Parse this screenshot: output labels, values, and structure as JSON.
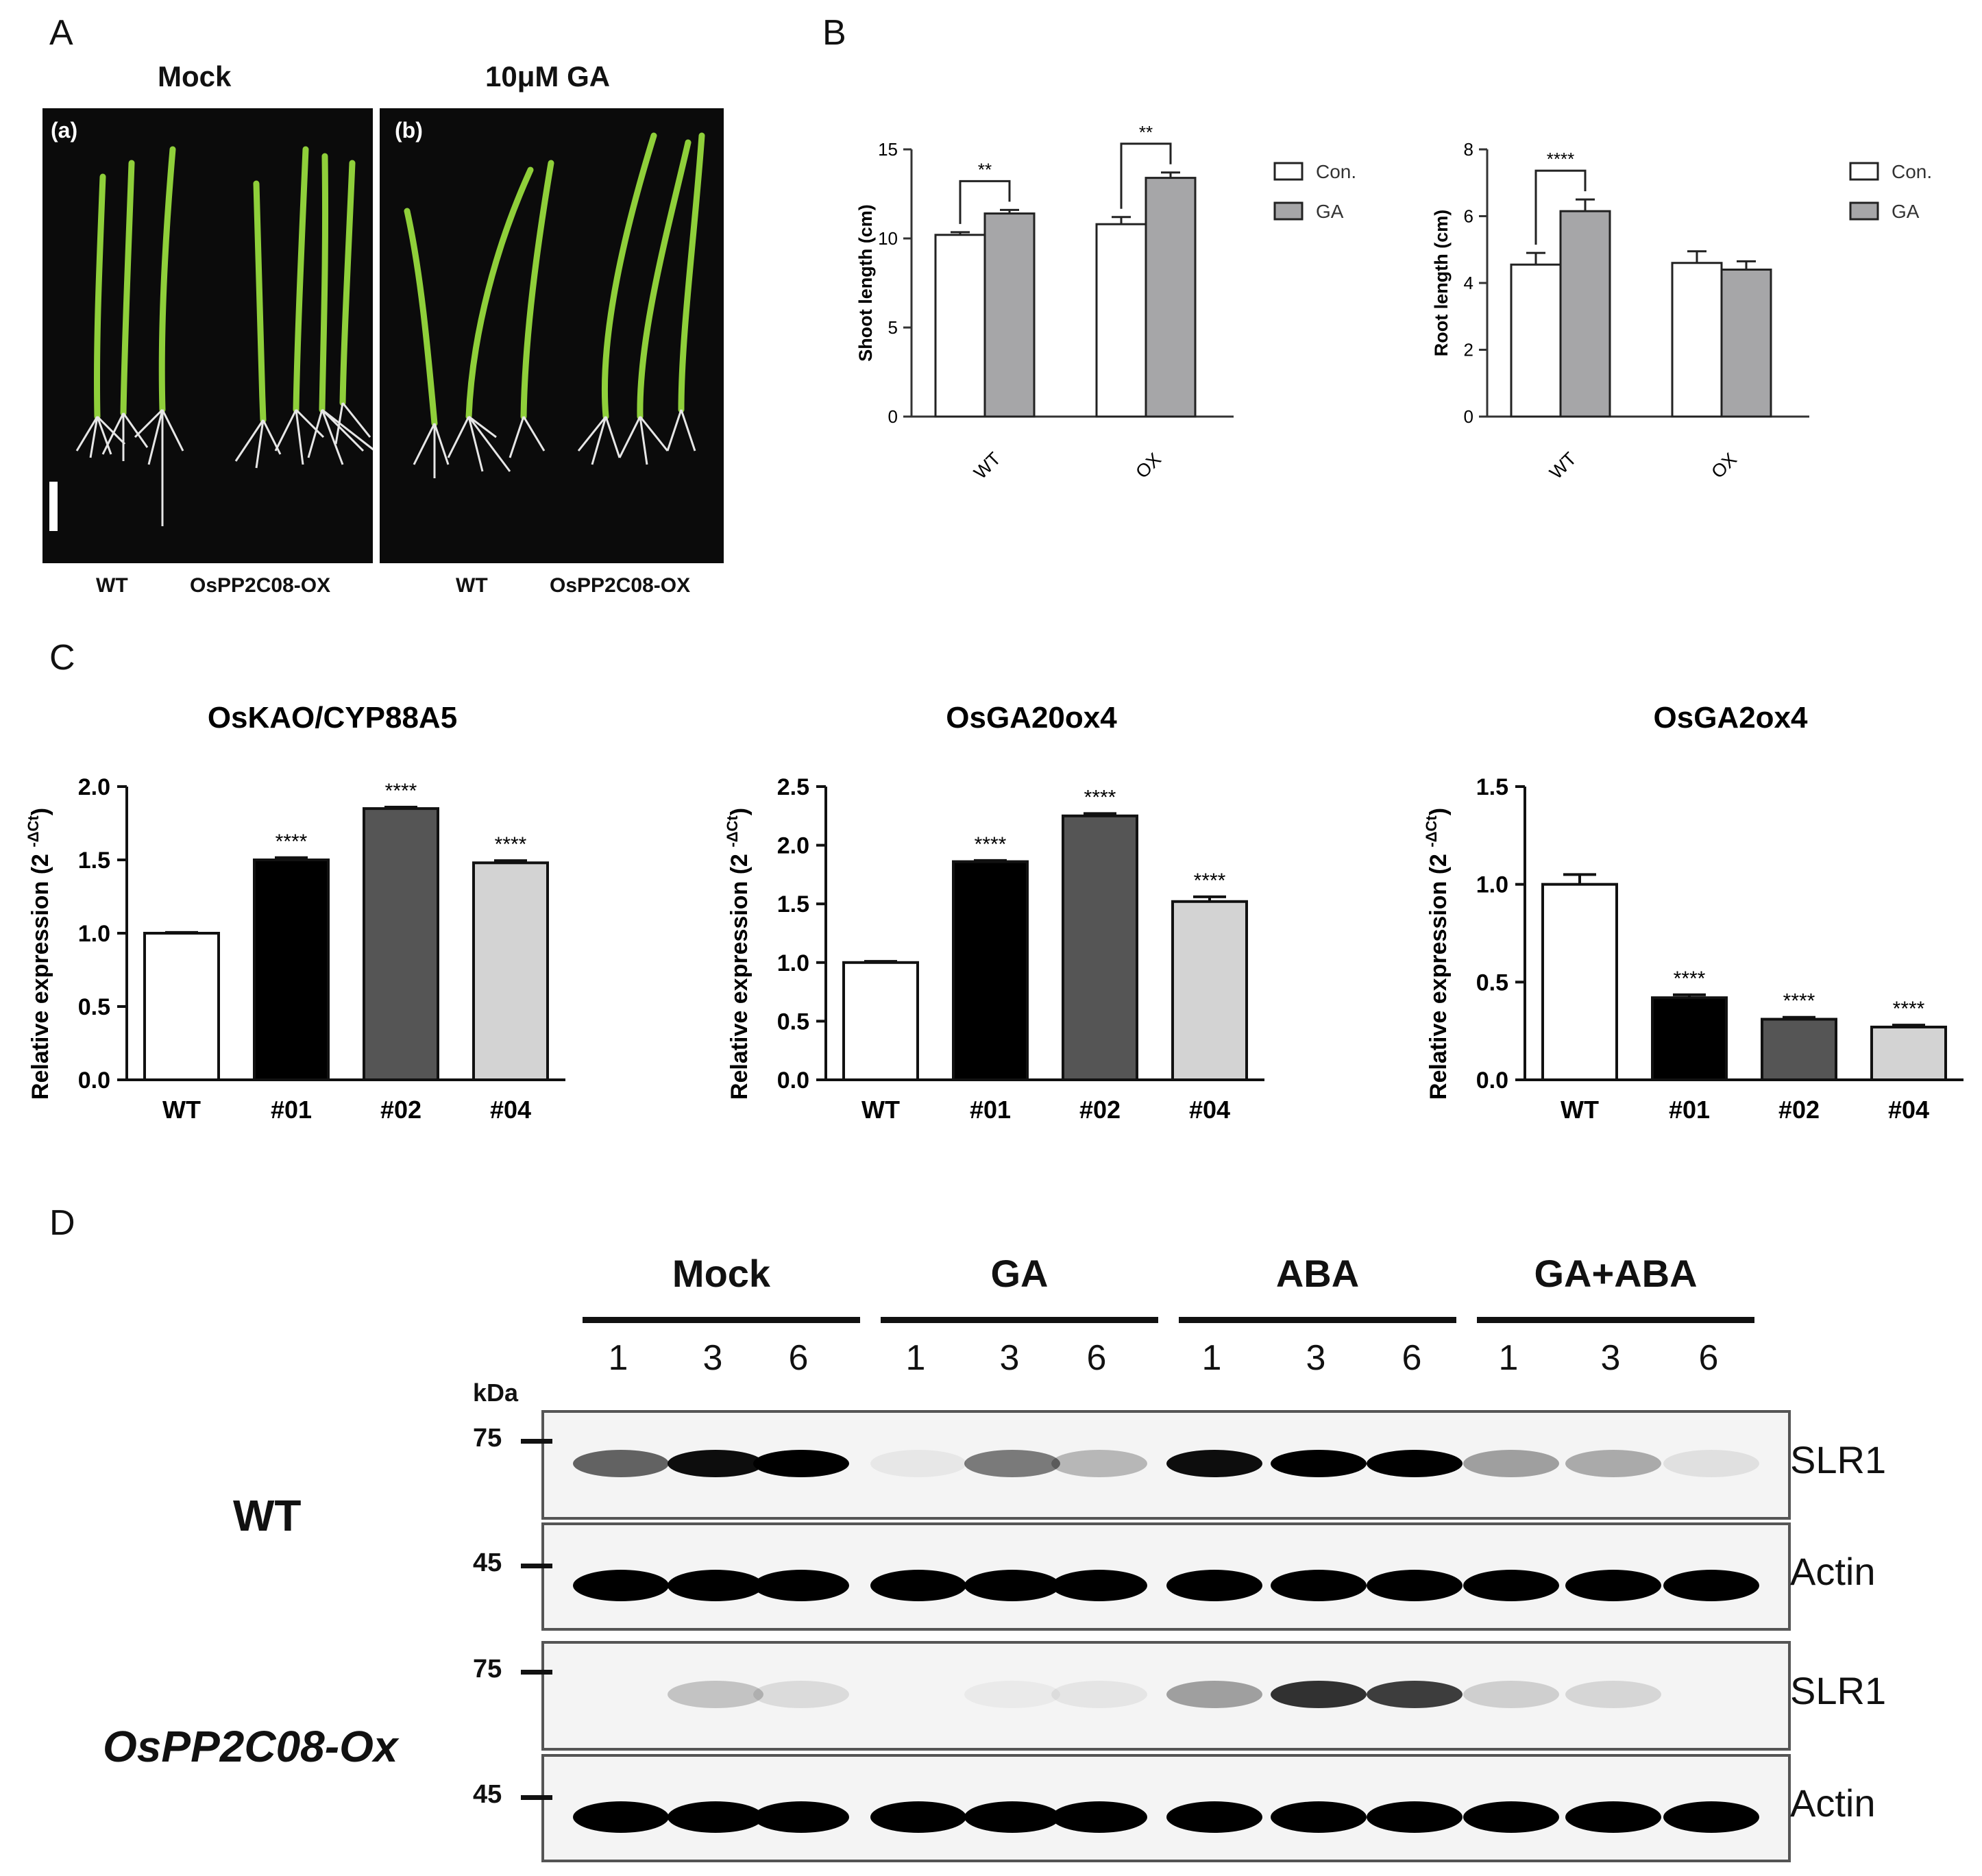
{
  "panels": {
    "A": "A",
    "B": "B",
    "C": "C",
    "D": "D"
  },
  "panel_a": {
    "mock_title": "Mock",
    "ga_title": "10μM GA",
    "tag_a": "(a)",
    "tag_b": "(b)",
    "wt_label": "WT",
    "ox_label": "OsPP2C08-OX"
  },
  "chart_data": [
    {
      "type": "bar",
      "panel": "B",
      "categories": [
        "WT",
        "OX"
      ],
      "series": [
        {
          "name": "Con.",
          "values": [
            10.2,
            10.8
          ],
          "errors": [
            0.15,
            0.4
          ],
          "color": "#ffffff"
        },
        {
          "name": "GA",
          "values": [
            11.4,
            13.4
          ],
          "errors": [
            0.2,
            0.3
          ],
          "color": "#a6a6a8"
        }
      ],
      "ylabel": "Shoot length (cm)",
      "ylim": [
        0,
        15
      ],
      "yticks": [
        "0",
        "5",
        "10",
        "15"
      ],
      "significance": [
        "**",
        "**"
      ],
      "legend": "right"
    },
    {
      "type": "bar",
      "panel": "B",
      "categories": [
        "WT",
        "OX"
      ],
      "series": [
        {
          "name": "Con.",
          "values": [
            4.55,
            4.6
          ],
          "errors": [
            0.35,
            0.35
          ],
          "color": "#ffffff"
        },
        {
          "name": "GA",
          "values": [
            6.15,
            4.4
          ],
          "errors": [
            0.35,
            0.25
          ],
          "color": "#a6a6a8"
        }
      ],
      "ylabel": "Root length (cm)",
      "ylim": [
        0,
        8
      ],
      "yticks": [
        "0",
        "2",
        "4",
        "6",
        "8"
      ],
      "significance": [
        "****",
        ""
      ],
      "legend": "right"
    },
    {
      "type": "bar",
      "panel": "C",
      "title": "OsKAO/CYP88A5",
      "categories": [
        "WT",
        "#01",
        "#02",
        "#04"
      ],
      "values": [
        1.0,
        1.5,
        1.85,
        1.48
      ],
      "errors": [
        0.005,
        0.015,
        0.01,
        0.015
      ],
      "colors": [
        "#ffffff",
        "#000000",
        "#555555",
        "#d3d3d3"
      ],
      "stars": [
        "",
        "****",
        "****",
        "****"
      ],
      "ylabel": "Relative expression (2",
      "ylabel_sup": "-ΔCt",
      "ylabel_close": ")",
      "ylim": [
        0,
        2.0
      ],
      "yticks": [
        "0.0",
        "0.5",
        "1.0",
        "1.5",
        "2.0"
      ]
    },
    {
      "type": "bar",
      "panel": "C",
      "title": "OsGA20ox4",
      "categories": [
        "WT",
        "#01",
        "#02",
        "#04"
      ],
      "values": [
        1.0,
        1.86,
        2.25,
        1.52
      ],
      "errors": [
        0.01,
        0.01,
        0.02,
        0.04
      ],
      "colors": [
        "#ffffff",
        "#000000",
        "#555555",
        "#d3d3d3"
      ],
      "stars": [
        "",
        "****",
        "****",
        "****"
      ],
      "ylabel": "Relative expression (2",
      "ylabel_sup": "-ΔCt",
      "ylabel_close": ")",
      "ylim": [
        0,
        2.5
      ],
      "yticks": [
        "0.0",
        "0.5",
        "1.0",
        "1.5",
        "2.0",
        "2.5"
      ]
    },
    {
      "type": "bar",
      "panel": "C",
      "title": "OsGA2ox4",
      "categories": [
        "WT",
        "#01",
        "#02",
        "#04"
      ],
      "values": [
        1.0,
        0.42,
        0.31,
        0.27
      ],
      "errors": [
        0.05,
        0.015,
        0.01,
        0.01
      ],
      "colors": [
        "#ffffff",
        "#000000",
        "#555555",
        "#d3d3d3"
      ],
      "stars": [
        "",
        "****",
        "****",
        "****"
      ],
      "ylabel": "Relative expression (2",
      "ylabel_sup": "-ΔCt",
      "ylabel_close": ")",
      "ylim": [
        0,
        1.5
      ],
      "yticks": [
        "0.0",
        "0.5",
        "1.0",
        "1.5"
      ]
    }
  ],
  "panel_d": {
    "groups": [
      "Mock",
      "GA",
      "ABA",
      "GA+ABA"
    ],
    "timepoints": [
      "1",
      "3",
      "6",
      "1",
      "3",
      "6",
      "1",
      "3",
      "6",
      "1",
      "3",
      "6"
    ],
    "kda": "kDa",
    "marker_75": "75",
    "marker_45": "45",
    "wt_label": "WT",
    "ox_label": "OsPP2C08-Ox",
    "slr1": "SLR1",
    "actin": "Actin",
    "wt_slr1_intensity": [
      0.6,
      0.95,
      1.0,
      0.05,
      0.5,
      0.25,
      0.95,
      1.0,
      1.0,
      0.35,
      0.3,
      0.08
    ],
    "ox_slr1_intensity": [
      0.0,
      0.2,
      0.1,
      0.0,
      0.04,
      0.06,
      0.35,
      0.8,
      0.75,
      0.15,
      0.12,
      0.0
    ]
  }
}
